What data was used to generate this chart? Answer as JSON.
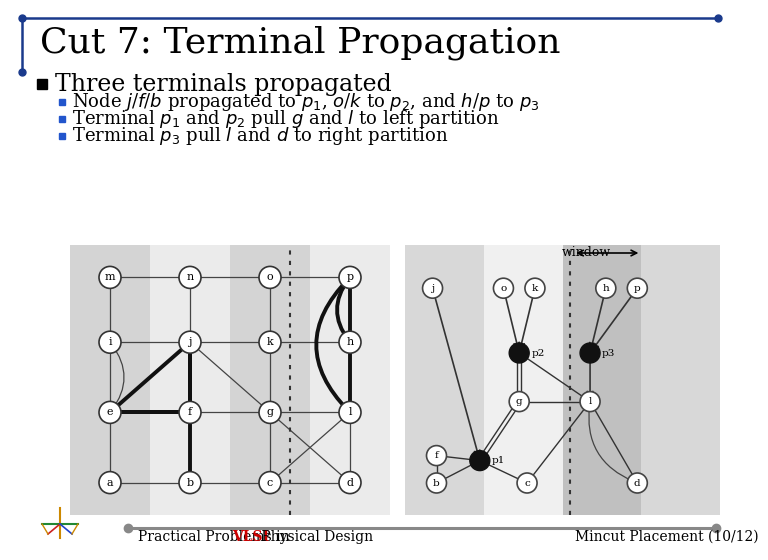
{
  "title": "Cut 7: Terminal Propagation",
  "title_fontsize": 26,
  "title_color": "#000000",
  "title_font": "serif",
  "bullet_main": "Three terminals propagated",
  "bullet_main_fontsize": 17,
  "sub_bullets": [
    "Node $j$/$f$/$b$ propagated to $p_1$, $o$/$k$ to $p_2$, and $h$/$p$ to $p_3$",
    "Terminal $p_1$ and $p_2$ pull $g$ and $l$ to left partition",
    "Terminal $p_3$ pull $l$ and $d$ to right partition"
  ],
  "sub_bullet_fontsize": 13,
  "footer_left": "Practical Problems in ",
  "footer_vlsi": "VLSI",
  "footer_right": " Physical Design",
  "footer_right2": "Mincut Placement (10/12)",
  "footer_fontsize": 10,
  "bg_color": "#ffffff",
  "header_line_color": "#1a3a8c",
  "bullet_color": "#000000",
  "sub_bullet_color": "#2255cc",
  "footer_line_color": "#888888",
  "vlsi_color": "#cc0000"
}
